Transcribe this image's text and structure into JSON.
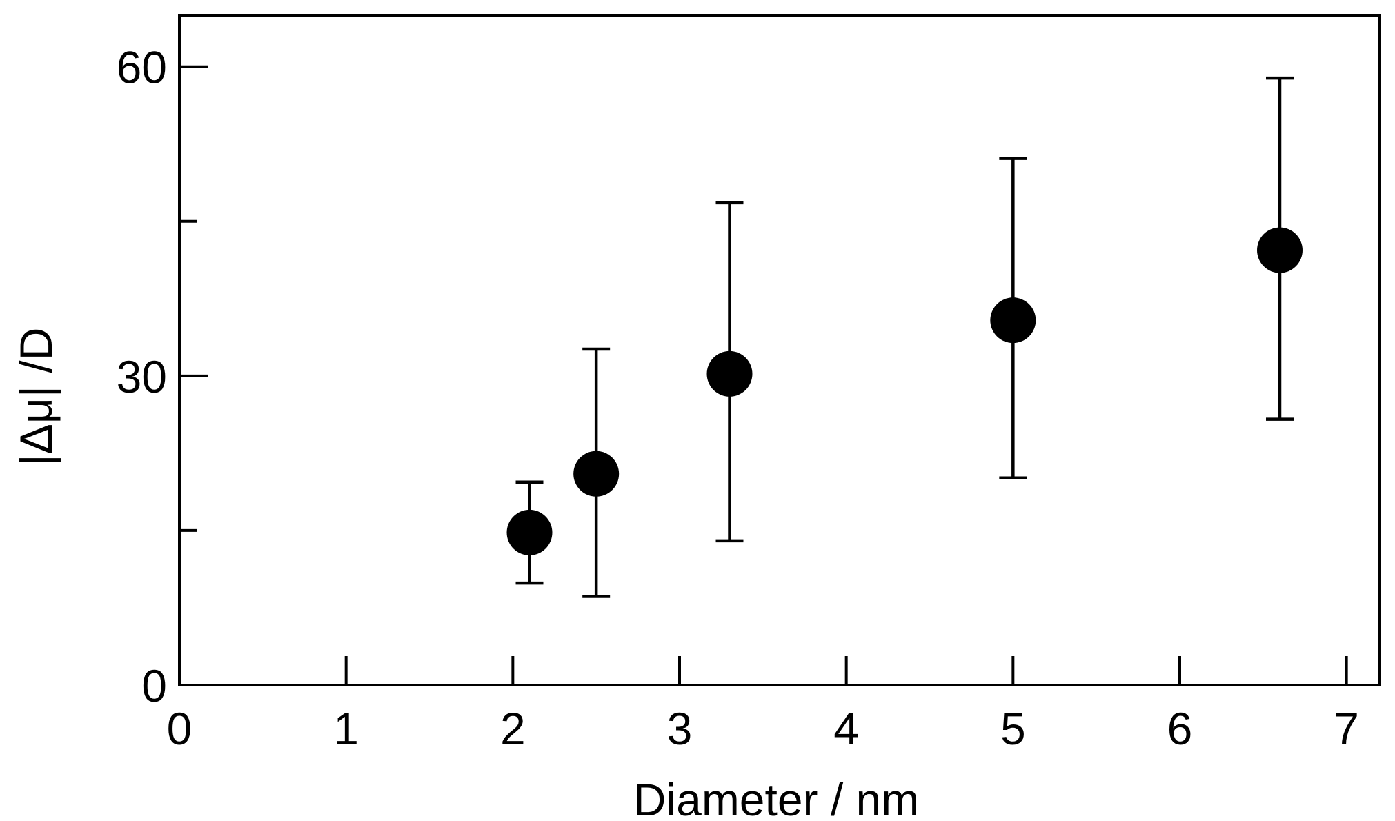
{
  "chart_data": {
    "type": "scatter",
    "xlabel": "Diameter / nm",
    "ylabel": "|Δμ| /D",
    "xlim": [
      0,
      7.2
    ],
    "ylim": [
      0,
      65
    ],
    "x_ticks": [
      0,
      1,
      2,
      3,
      4,
      5,
      6,
      7
    ],
    "x_tick_labels": [
      "0",
      "1",
      "2",
      "3",
      "4",
      "5",
      "6",
      "7"
    ],
    "y_ticks": [
      0,
      30,
      60
    ],
    "y_tick_labels": [
      "0",
      "30",
      "60"
    ],
    "y_minor_ticks": [
      15,
      45
    ],
    "grid": false,
    "legend": "none",
    "marker_color": "#000000",
    "series": [
      {
        "points": [
          {
            "x": 2.1,
            "y": 14.8,
            "y_low": 9.9,
            "y_high": 19.7
          },
          {
            "x": 2.5,
            "y": 20.5,
            "y_low": 8.6,
            "y_high": 32.6
          },
          {
            "x": 3.3,
            "y": 30.2,
            "y_low": 14.0,
            "y_high": 46.8
          },
          {
            "x": 5.0,
            "y": 35.4,
            "y_low": 20.1,
            "y_high": 51.1
          },
          {
            "x": 6.6,
            "y": 42.2,
            "y_low": 25.8,
            "y_high": 58.9
          }
        ]
      }
    ]
  }
}
